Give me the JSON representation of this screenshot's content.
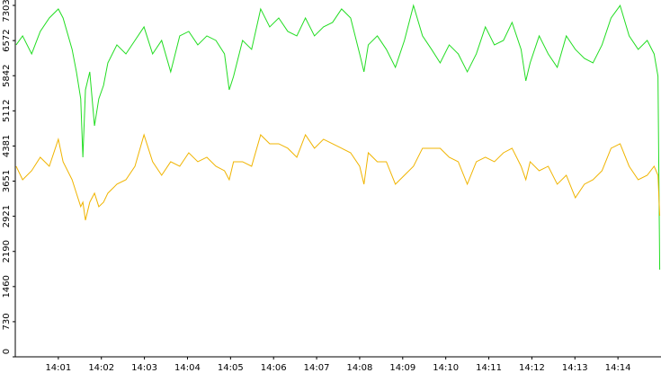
{
  "chart_data": {
    "type": "line",
    "x": [
      0.02,
      0.17,
      0.38,
      0.58,
      0.79,
      1.0,
      1.11,
      1.32,
      1.42,
      1.52,
      1.57,
      1.63,
      1.73,
      1.84,
      1.94,
      2.05,
      2.15,
      2.36,
      2.57,
      2.78,
      2.99,
      3.19,
      3.4,
      3.61,
      3.82,
      4.03,
      4.24,
      4.45,
      4.66,
      4.86,
      4.97,
      5.07,
      5.28,
      5.49,
      5.7,
      5.91,
      6.12,
      6.33,
      6.54,
      6.74,
      6.95,
      7.16,
      7.37,
      7.58,
      7.79,
      8.0,
      8.1,
      8.2,
      8.41,
      8.62,
      8.83,
      9.04,
      9.25,
      9.46,
      9.67,
      9.87,
      10.08,
      10.29,
      10.5,
      10.71,
      10.92,
      11.13,
      11.34,
      11.54,
      11.75,
      11.86,
      11.96,
      12.17,
      12.38,
      12.59,
      12.8,
      13.01,
      13.22,
      13.42,
      13.63,
      13.84,
      14.05,
      14.26,
      14.47,
      14.68,
      14.84,
      14.93,
      14.97
    ],
    "series": [
      {
        "color": "#22dd22",
        "values": [
          6482,
          6669,
          6295,
          6762,
          7042,
          7229,
          7042,
          6389,
          5922,
          5361,
          4147,
          5548,
          5922,
          4801,
          5361,
          5641,
          6108,
          6482,
          6295,
          6575,
          6856,
          6295,
          6575,
          5922,
          6669,
          6762,
          6482,
          6669,
          6575,
          6295,
          5548,
          5828,
          6575,
          6389,
          7229,
          6856,
          7042,
          6762,
          6669,
          7042,
          6669,
          6856,
          6949,
          7229,
          7042,
          6295,
          5922,
          6482,
          6669,
          6389,
          6015,
          6575,
          7300,
          6669,
          6389,
          6108,
          6482,
          6295,
          5922,
          6295,
          6856,
          6482,
          6575,
          6949,
          6389,
          5735,
          6108,
          6669,
          6295,
          6015,
          6669,
          6389,
          6202,
          6108,
          6482,
          7042,
          7300,
          6669,
          6389,
          6575,
          6295,
          5828,
          1812
        ]
      },
      {
        "color": "#f0b400",
        "values": [
          3960,
          3680,
          3867,
          4147,
          3960,
          4521,
          4054,
          3680,
          3400,
          3120,
          3213,
          2839,
          3213,
          3400,
          3120,
          3213,
          3400,
          3587,
          3680,
          3960,
          4614,
          4054,
          3773,
          4054,
          3960,
          4240,
          4054,
          4147,
          3960,
          3867,
          3680,
          4054,
          4054,
          3960,
          4614,
          4427,
          4427,
          4334,
          4147,
          4614,
          4334,
          4521,
          4427,
          4334,
          4240,
          3960,
          3587,
          4240,
          4054,
          4054,
          3587,
          3773,
          3960,
          4334,
          4334,
          4334,
          4147,
          4054,
          3587,
          4054,
          4147,
          4054,
          4240,
          4334,
          3960,
          3680,
          4054,
          3867,
          3960,
          3587,
          3773,
          3306,
          3587,
          3680,
          3867,
          4334,
          4427,
          3960,
          3680,
          3773,
          3960,
          3773,
          2933
        ]
      }
    ],
    "xlim": [
      0,
      15
    ],
    "xticks": [
      {
        "value": 1,
        "label": "14:01"
      },
      {
        "value": 2,
        "label": "14:02"
      },
      {
        "value": 3,
        "label": "14:03"
      },
      {
        "value": 4,
        "label": "14:04"
      },
      {
        "value": 5,
        "label": "14:05"
      },
      {
        "value": 6,
        "label": "14:06"
      },
      {
        "value": 7,
        "label": "14:07"
      },
      {
        "value": 8,
        "label": "14:08"
      },
      {
        "value": 9,
        "label": "14:09"
      },
      {
        "value": 10,
        "label": "14:10"
      },
      {
        "value": 11,
        "label": "14:11"
      },
      {
        "value": 12,
        "label": "14:12"
      },
      {
        "value": 13,
        "label": "14:13"
      },
      {
        "value": 14,
        "label": "14:14"
      }
    ],
    "ylim": [
      0,
      7303
    ],
    "yticks": [
      0,
      730,
      1460,
      2190,
      2921,
      3651,
      4381,
      5112,
      5842,
      6572,
      7303
    ]
  }
}
